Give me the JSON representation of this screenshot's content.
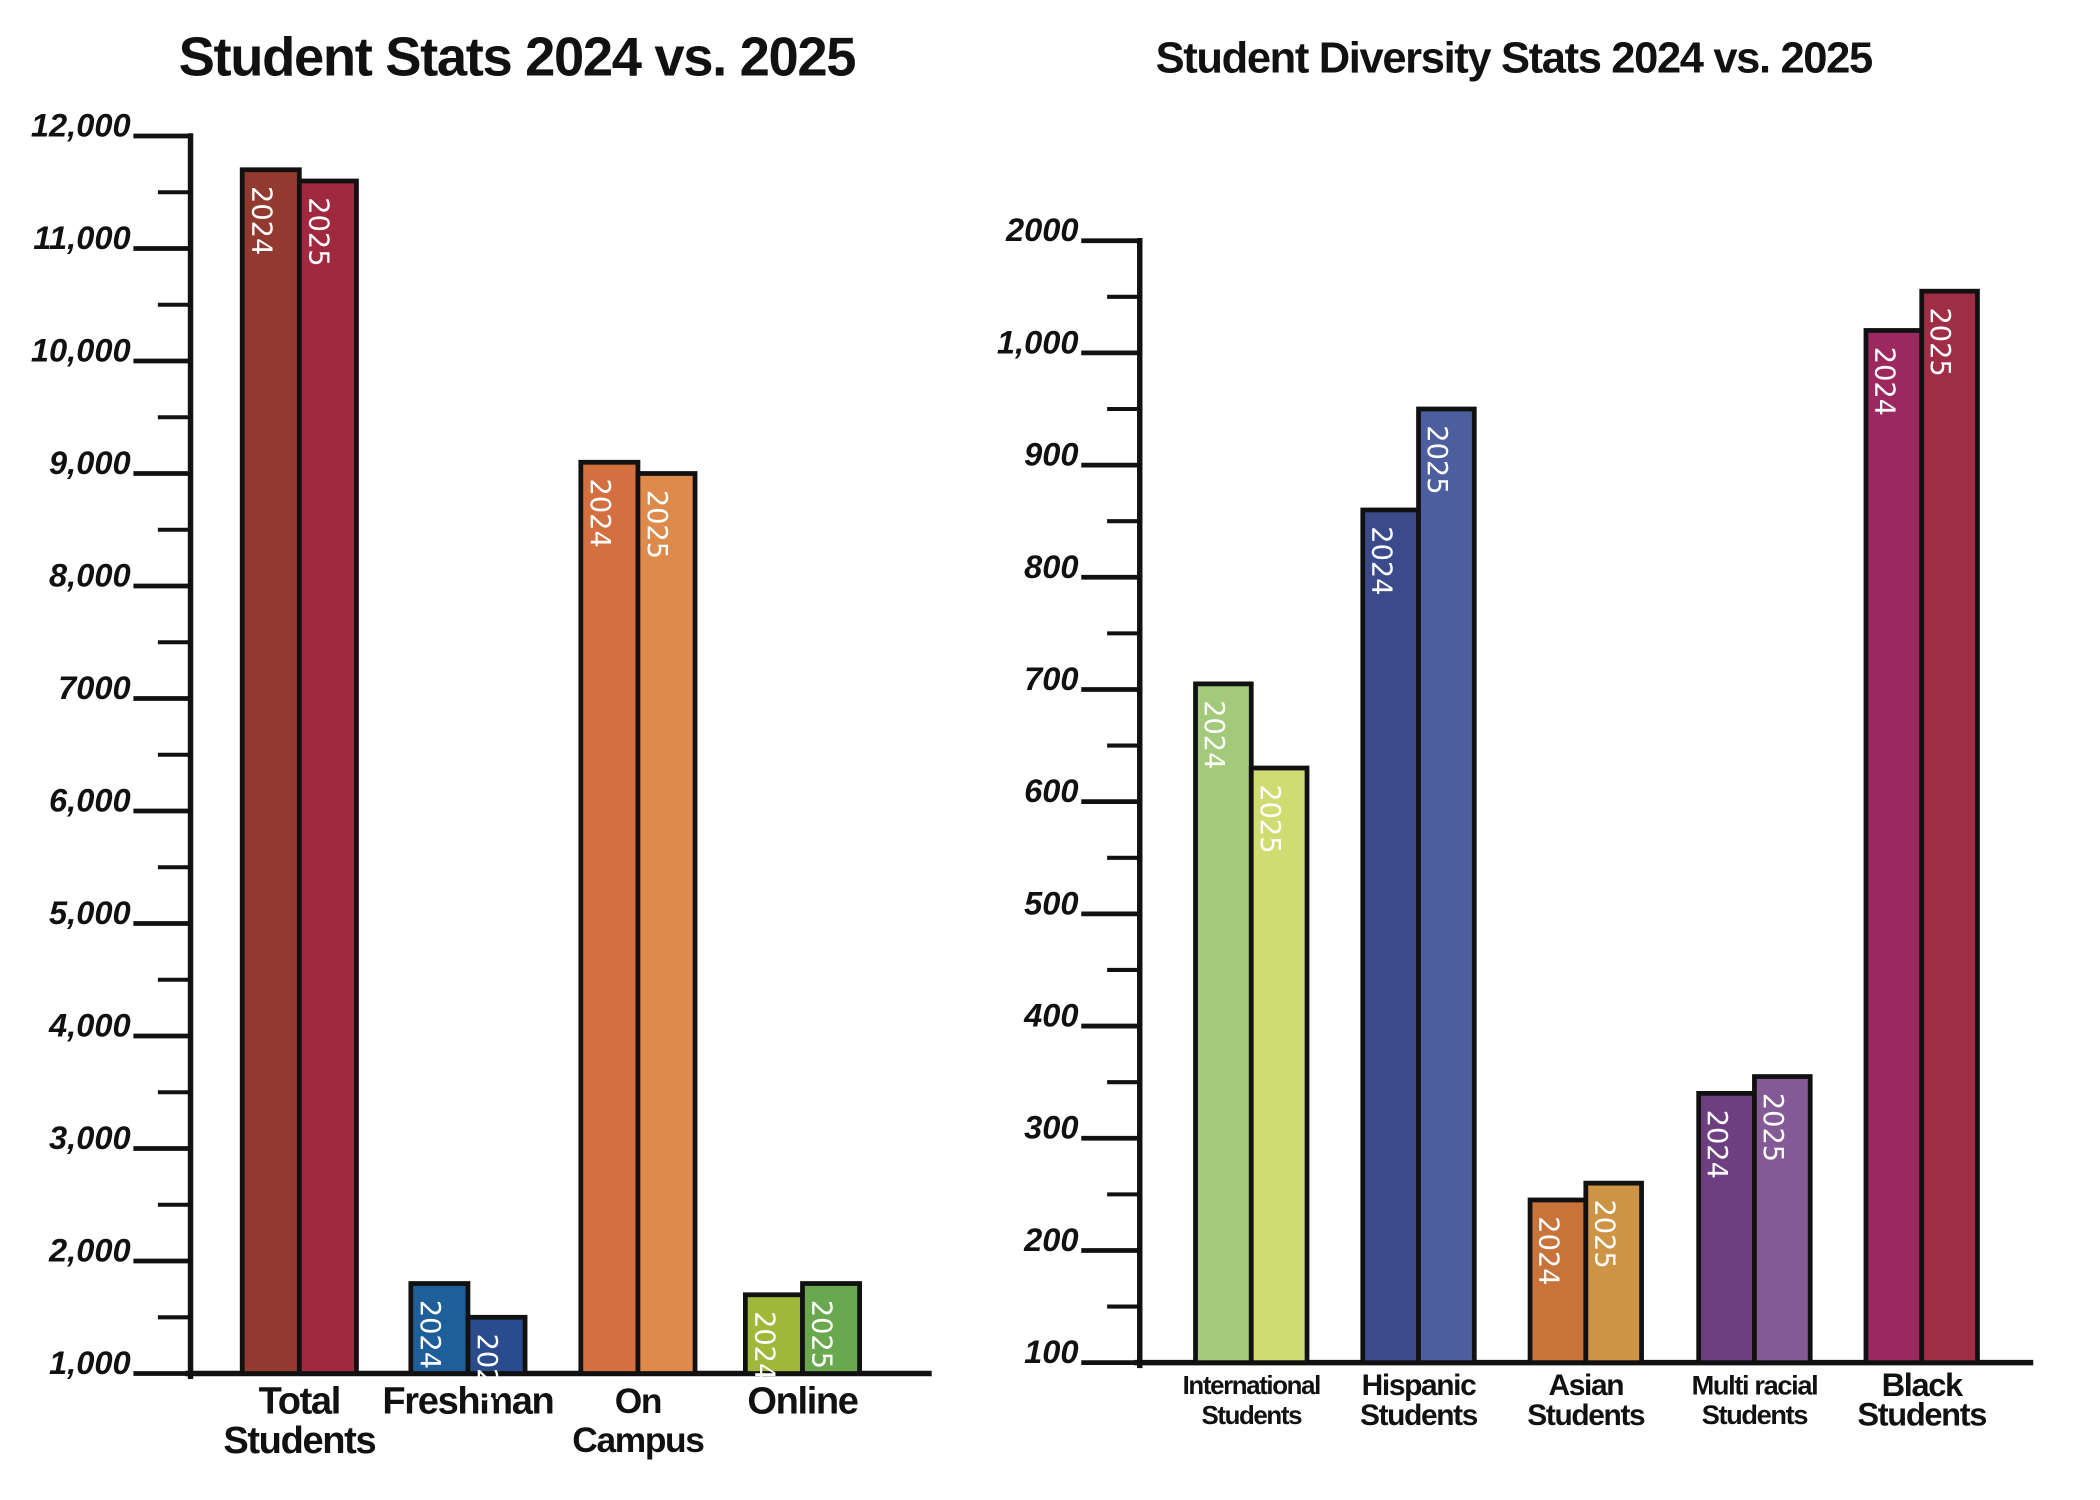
{
  "chart_data": [
    {
      "type": "bar",
      "title": "Student Stats 2024 vs. 2025",
      "categories": [
        [
          "Total",
          "Students"
        ],
        [
          "Freshman"
        ],
        [
          "On",
          "Campus"
        ],
        [
          "Online"
        ]
      ],
      "series": [
        {
          "name": "2024",
          "colors": [
            "#933a30",
            "#1f5f99",
            "#d46f3f",
            "#9fb83a"
          ],
          "values": [
            11700,
            1800,
            9100,
            1700
          ]
        },
        {
          "name": "2025",
          "colors": [
            "#a0293f",
            "#2a4b8c",
            "#de8a4a",
            "#6aa84f"
          ],
          "values": [
            11600,
            1500,
            9000,
            1800
          ]
        }
      ],
      "ylim": [
        1000,
        12000
      ],
      "yticks": [
        {
          "value": 1000,
          "label": "1,000"
        },
        {
          "value": 2000,
          "label": "2,000"
        },
        {
          "value": 3000,
          "label": "3,000"
        },
        {
          "value": 4000,
          "label": "4,000"
        },
        {
          "value": 5000,
          "label": "5,000"
        },
        {
          "value": 6000,
          "label": "6,000"
        },
        7000,
        {
          "value": 8000,
          "label": "8,000"
        },
        {
          "value": 9000,
          "label": "9,000"
        },
        {
          "value": 10000,
          "label": "10,000"
        },
        {
          "value": 11000,
          "label": "11,000"
        },
        {
          "value": 12000,
          "label": "12,000"
        }
      ],
      "minor_yticks": [
        1500,
        2500,
        3500,
        4500,
        5500,
        6500,
        7500,
        8500,
        9500,
        10500,
        11500
      ]
    },
    {
      "type": "bar",
      "title": "Student Diversity Stats 2024 vs. 2025",
      "categories": [
        [
          "International",
          "Students"
        ],
        [
          "Hispanic",
          "Students"
        ],
        [
          "Asian",
          "Students"
        ],
        [
          "Multi racial",
          "Students"
        ],
        [
          "Black",
          "Students"
        ]
      ],
      "series": [
        {
          "name": "2024",
          "colors": [
            "#a3c97a",
            "#3a4a8a",
            "#c8733a",
            "#6e3f80",
            "#9c2860"
          ],
          "values": [
            705,
            860,
            245,
            340,
            1200
          ]
        },
        {
          "name": "2025",
          "colors": [
            "#cfdc72",
            "#4d5e9e",
            "#cc9444",
            "#845a96",
            "#9e2d45"
          ],
          "values": [
            630,
            950,
            260,
            355,
            1550
          ]
        }
      ],
      "yscale": "piecewise",
      "ylim": [
        100,
        2000
      ],
      "yticks": [
        100,
        200,
        300,
        400,
        500,
        600,
        700,
        800,
        900,
        {
          "value": 1000,
          "label": "1,000"
        },
        2000
      ],
      "minor_yticks": [
        150,
        250,
        350,
        450,
        550,
        650,
        750,
        850,
        950,
        1500
      ]
    }
  ]
}
